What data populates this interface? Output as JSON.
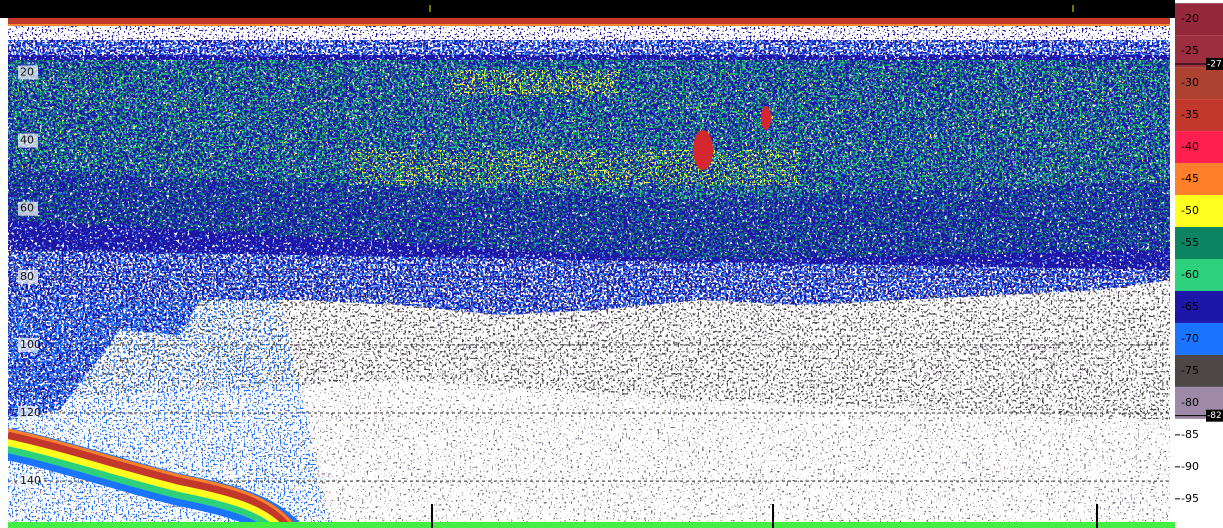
{
  "chart_data": {
    "type": "echogram",
    "ylim": [
      4,
      152
    ],
    "yticks": [
      20,
      40,
      60,
      80,
      100,
      120,
      140
    ],
    "grid": true,
    "clim": [
      -17,
      -98
    ],
    "color_bands": [
      {
        "value": -20,
        "color": "#96283c"
      },
      {
        "value": -25,
        "color": "#9c2e40"
      },
      {
        "value": -30,
        "color": "#ad4231"
      },
      {
        "value": -35,
        "color": "#c3382c"
      },
      {
        "value": -40,
        "color": "#ff2050"
      },
      {
        "value": -45,
        "color": "#ff7f2a"
      },
      {
        "value": -50,
        "color": "#ffff20"
      },
      {
        "value": -55,
        "color": "#0c8462"
      },
      {
        "value": -60,
        "color": "#2dd07c"
      },
      {
        "value": -65,
        "color": "#1e16a8"
      },
      {
        "value": -70,
        "color": "#1a74ff"
      },
      {
        "value": -75,
        "color": "#4c4646"
      },
      {
        "value": -80,
        "color": "#9e8aa6"
      }
    ],
    "cticks": [
      -85,
      -90,
      -95
    ],
    "thresholds": [
      -27,
      -82
    ]
  }
}
